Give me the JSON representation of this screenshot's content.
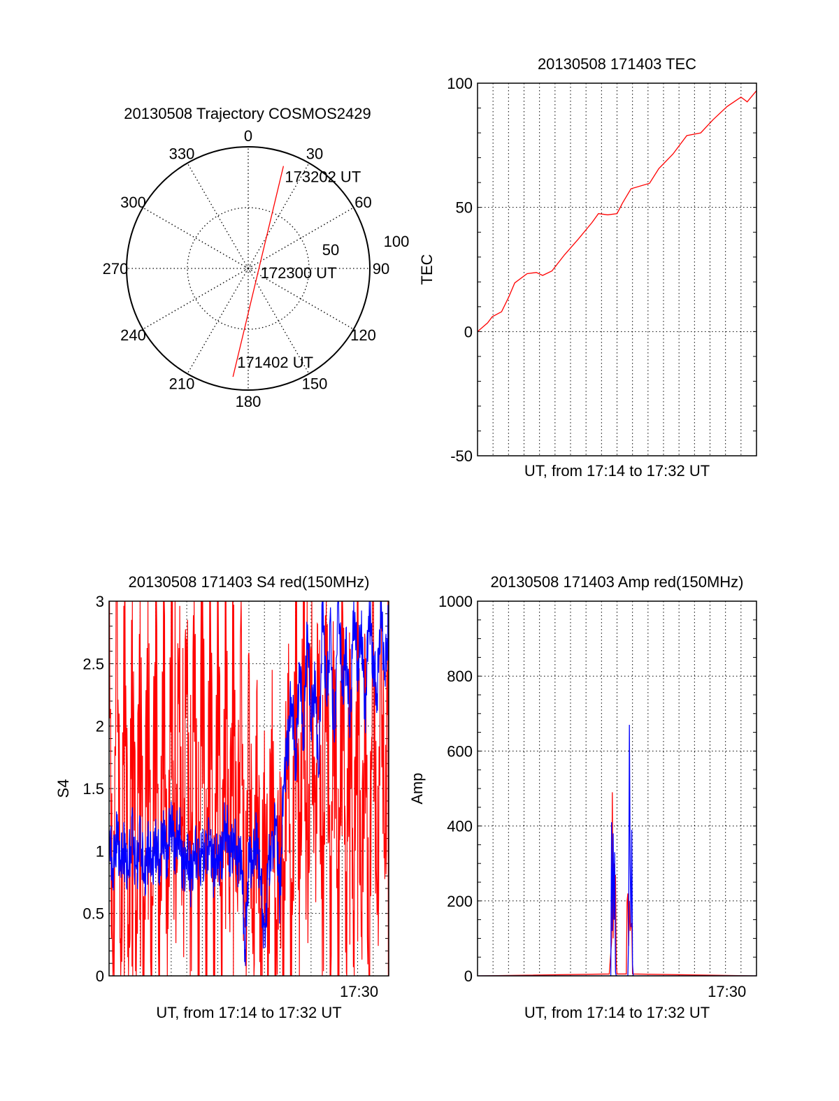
{
  "colors": {
    "red": "#ff0000",
    "blue": "#0000ff",
    "axis": "#000000"
  },
  "chart_data": [
    {
      "type": "polar",
      "title": "20130508 Trajectory COSMOS2429",
      "angle_labels": [
        "0",
        "30",
        "60",
        "90",
        "120",
        "150",
        "180",
        "210",
        "240",
        "270",
        "300",
        "330"
      ],
      "radial_labels": [
        {
          "value": 50,
          "label": "50"
        },
        {
          "value": 100,
          "label": "100"
        }
      ],
      "rlim": [
        0,
        100
      ],
      "trajectory": [
        {
          "az": 188,
          "r": 90,
          "label": "171402 UT"
        },
        {
          "az": 90,
          "r": 9,
          "label": "172300 UT"
        },
        {
          "az": 19,
          "r": 89,
          "label": "173202 UT"
        }
      ]
    },
    {
      "type": "line",
      "title": "20130508 171403 TEC",
      "ylabel": "TEC",
      "xlabel": "UT, from 17:14 to 17:32 UT",
      "xlim_minutes": [
        0,
        18
      ],
      "ylim": [
        -50,
        100
      ],
      "yticks": [
        {
          "value": -50,
          "label": "-50"
        },
        {
          "value": 0,
          "label": "0"
        },
        {
          "value": 50,
          "label": "50"
        },
        {
          "value": 100,
          "label": "100"
        }
      ],
      "series": [
        {
          "name": "TEC",
          "color": "red",
          "x": [
            0,
            0.65,
            0.95,
            1.55,
            2,
            2.4,
            3.2,
            3.8,
            4.2,
            4.8,
            5.6,
            6.5,
            7.4,
            7.8,
            8.4,
            9,
            9.35,
            9.9,
            11.1,
            11.7,
            12.6,
            13.5,
            14.4,
            15.2,
            16.1,
            17,
            17.4,
            18
          ],
          "values": [
            0,
            3.5,
            6,
            8,
            13.7,
            19.6,
            23.3,
            23.8,
            22.6,
            24.4,
            30.8,
            37.2,
            44,
            47.5,
            47,
            47.5,
            51.7,
            57.5,
            59.7,
            65.6,
            71.4,
            78.9,
            80,
            85.3,
            90.6,
            94.4,
            92.5,
            97
          ]
        }
      ]
    },
    {
      "type": "line",
      "title": "20130508 171403 S4 red(150MHz)",
      "ylabel": "S4",
      "xlabel": "UT, from 17:14 to 17:32 UT",
      "xlim_minutes": [
        0,
        18
      ],
      "xticks": [
        {
          "minute": 16,
          "label": "17:30"
        }
      ],
      "ylim": [
        0,
        3
      ],
      "yticks": [
        {
          "value": 0,
          "label": "0"
        },
        {
          "value": 0.5,
          "label": "0.5"
        },
        {
          "value": 1,
          "label": "1"
        },
        {
          "value": 1.5,
          "label": "1.5"
        },
        {
          "value": 2,
          "label": "2"
        },
        {
          "value": 2.5,
          "label": "2.5"
        },
        {
          "value": 3,
          "label": "3"
        }
      ],
      "x_step_minutes": 0.25,
      "series": [
        {
          "name": "red",
          "color": "red",
          "values": [
            3,
            0,
            3,
            0,
            3,
            0,
            3,
            0,
            3,
            0,
            3,
            0,
            3,
            0,
            3,
            0,
            3,
            0,
            3,
            0,
            3,
            0,
            3,
            0,
            3,
            0,
            3,
            0,
            3,
            0,
            3,
            0.6,
            2.6,
            0.7,
            2.2,
            0.5,
            1.8,
            0.4,
            1.6,
            0.3,
            1.4,
            0.2,
            2.0,
            0.1,
            1.3,
            0.4,
            2.2,
            0,
            3,
            0.5,
            3,
            0,
            3,
            0.6,
            2.8,
            0,
            3,
            0.4,
            2.6,
            0,
            3,
            0.5,
            2.5,
            0.3,
            2.9,
            0.4,
            2.2,
            0,
            3,
            0.6,
            2.4,
            1.0,
            3
          ]
        },
        {
          "name": "blue",
          "color": "blue",
          "values": [
            1.1,
            0.8,
            1.2,
            0.9,
            1.0,
            0.85,
            1.1,
            0.9,
            1.05,
            0.8,
            1.0,
            0.9,
            1.1,
            0.85,
            1.2,
            0.95,
            1.3,
            1.0,
            1.15,
            0.9,
            0.95,
            0.8,
            1.0,
            0.85,
            1.05,
            0.9,
            1.1,
            0.85,
            0.95,
            1.0,
            1.2,
            1.0,
            1.1,
            0.95,
            1.0,
            0.15,
            1.0,
            0.9,
            1.1,
            0.8,
            0.15,
            1.0,
            0.9,
            1.3,
            0.6,
            1.6,
            1.9,
            2.2,
            1.7,
            2.5,
            1.9,
            2.8,
            2.0,
            2.4,
            1.6,
            3,
            2.2,
            2.7,
            1.9,
            3,
            2.3,
            2.6,
            2.0,
            3,
            2.4,
            2.8,
            2.1,
            3,
            2.5,
            2.2,
            3,
            2.4,
            2.8
          ]
        }
      ]
    },
    {
      "type": "line",
      "title": "20130508 171403 Amp red(150MHz)",
      "ylabel": "Amp",
      "xlabel": "UT, from 17:14 to 17:32 UT",
      "xlim_minutes": [
        0,
        18
      ],
      "xticks": [
        {
          "minute": 16,
          "label": "17:30"
        }
      ],
      "ylim": [
        0,
        1000
      ],
      "yticks": [
        {
          "value": 0,
          "label": "0"
        },
        {
          "value": 200,
          "label": "200"
        },
        {
          "value": 400,
          "label": "400"
        },
        {
          "value": 600,
          "label": "600"
        },
        {
          "value": 800,
          "label": "800"
        },
        {
          "value": 1000,
          "label": "1000"
        }
      ],
      "series": [
        {
          "name": "red",
          "color": "red",
          "x": [
            0,
            8.5,
            8.65,
            8.7,
            8.75,
            8.8,
            8.85,
            8.9,
            8.95,
            9.0,
            9.6,
            9.65,
            9.7,
            9.75,
            9.8,
            9.85,
            9.9,
            9.95,
            10.0,
            18
          ],
          "values": [
            0,
            5,
            90,
            490,
            100,
            300,
            150,
            270,
            30,
            5,
            5,
            200,
            220,
            80,
            200,
            120,
            140,
            140,
            5,
            0
          ]
        },
        {
          "name": "blue",
          "color": "blue",
          "x": [
            0,
            8.6,
            8.65,
            8.7,
            8.75,
            8.8,
            8.85,
            8.9,
            8.95,
            9.7,
            9.75,
            9.8,
            9.85,
            9.9,
            9.95,
            10.0,
            10.05,
            18
          ],
          "values": [
            0,
            0,
            410,
            120,
            380,
            150,
            330,
            10,
            0,
            0,
            100,
            670,
            300,
            130,
            390,
            30,
            0,
            0
          ]
        }
      ]
    }
  ]
}
